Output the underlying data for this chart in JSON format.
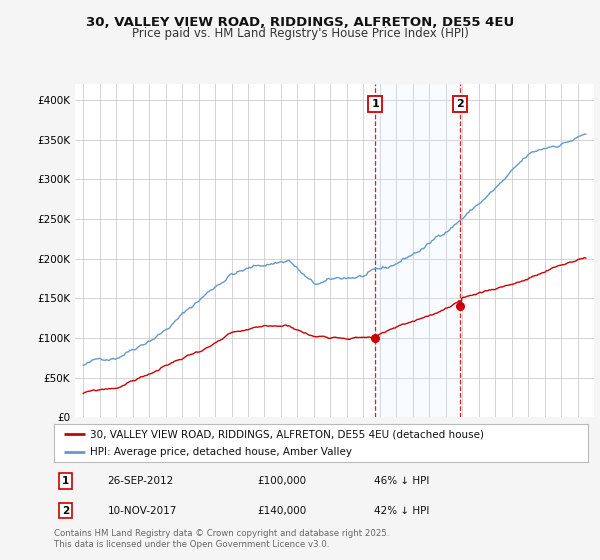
{
  "title": "30, VALLEY VIEW ROAD, RIDDINGS, ALFRETON, DE55 4EU",
  "subtitle": "Price paid vs. HM Land Registry's House Price Index (HPI)",
  "red_label": "30, VALLEY VIEW ROAD, RIDDINGS, ALFRETON, DE55 4EU (detached house)",
  "blue_label": "HPI: Average price, detached house, Amber Valley",
  "sale1_date": "26-SEP-2012",
  "sale1_price": 100000,
  "sale1_pct": "46% ↓ HPI",
  "sale2_date": "10-NOV-2017",
  "sale2_price": 140000,
  "sale2_pct": "42% ↓ HPI",
  "footnote": "Contains HM Land Registry data © Crown copyright and database right 2025.\nThis data is licensed under the Open Government Licence v3.0.",
  "ylim": [
    0,
    420000
  ],
  "yticks": [
    0,
    50000,
    100000,
    150000,
    200000,
    250000,
    300000,
    350000,
    400000
  ],
  "ytick_labels": [
    "£0",
    "£50K",
    "£100K",
    "£150K",
    "£200K",
    "£250K",
    "£300K",
    "£350K",
    "£400K"
  ],
  "red_color": "#cc0000",
  "blue_color": "#6699cc",
  "blue_shade_color": "#ddeeff",
  "vline_color": "#cc0000",
  "background_color": "#f5f5f5",
  "plot_bg_color": "#ffffff",
  "grid_color": "#cccccc",
  "sale1_x": 2012.73,
  "sale2_x": 2017.86,
  "xmin": 1994.5,
  "xmax": 2026.0,
  "title_fontsize": 9.5,
  "subtitle_fontsize": 8.5,
  "axis_fontsize": 7.5,
  "legend_fontsize": 7.5
}
